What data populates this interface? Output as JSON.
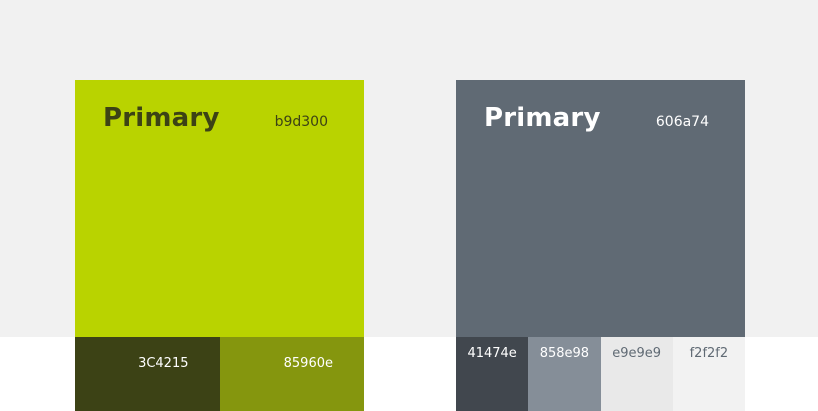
{
  "palettes": [
    {
      "primary_label": "Primary",
      "primary_hex": "b9d300",
      "primary_color": "#b9d300",
      "primary_text_color": "#3c4215",
      "swatches": [
        {
          "hex": "3C4215",
          "color": "#3c4215",
          "text_color": "#ffffff"
        },
        {
          "hex": "85960e",
          "color": "#85960e",
          "text_color": "#ffffff"
        }
      ]
    },
    {
      "primary_label": "Primary",
      "primary_hex": "606a74",
      "primary_color": "#606a74",
      "primary_text_color": "#ffffff",
      "swatches": [
        {
          "hex": "41474e",
          "color": "#41474e",
          "text_color": "#ffffff"
        },
        {
          "hex": "858e98",
          "color": "#858e98",
          "text_color": "#ffffff"
        },
        {
          "hex": "e9e9e9",
          "color": "#e9e9e9",
          "text_color": "#606a74"
        },
        {
          "hex": "f2f2f2",
          "color": "#f2f2f2",
          "text_color": "#606a74"
        }
      ]
    }
  ]
}
